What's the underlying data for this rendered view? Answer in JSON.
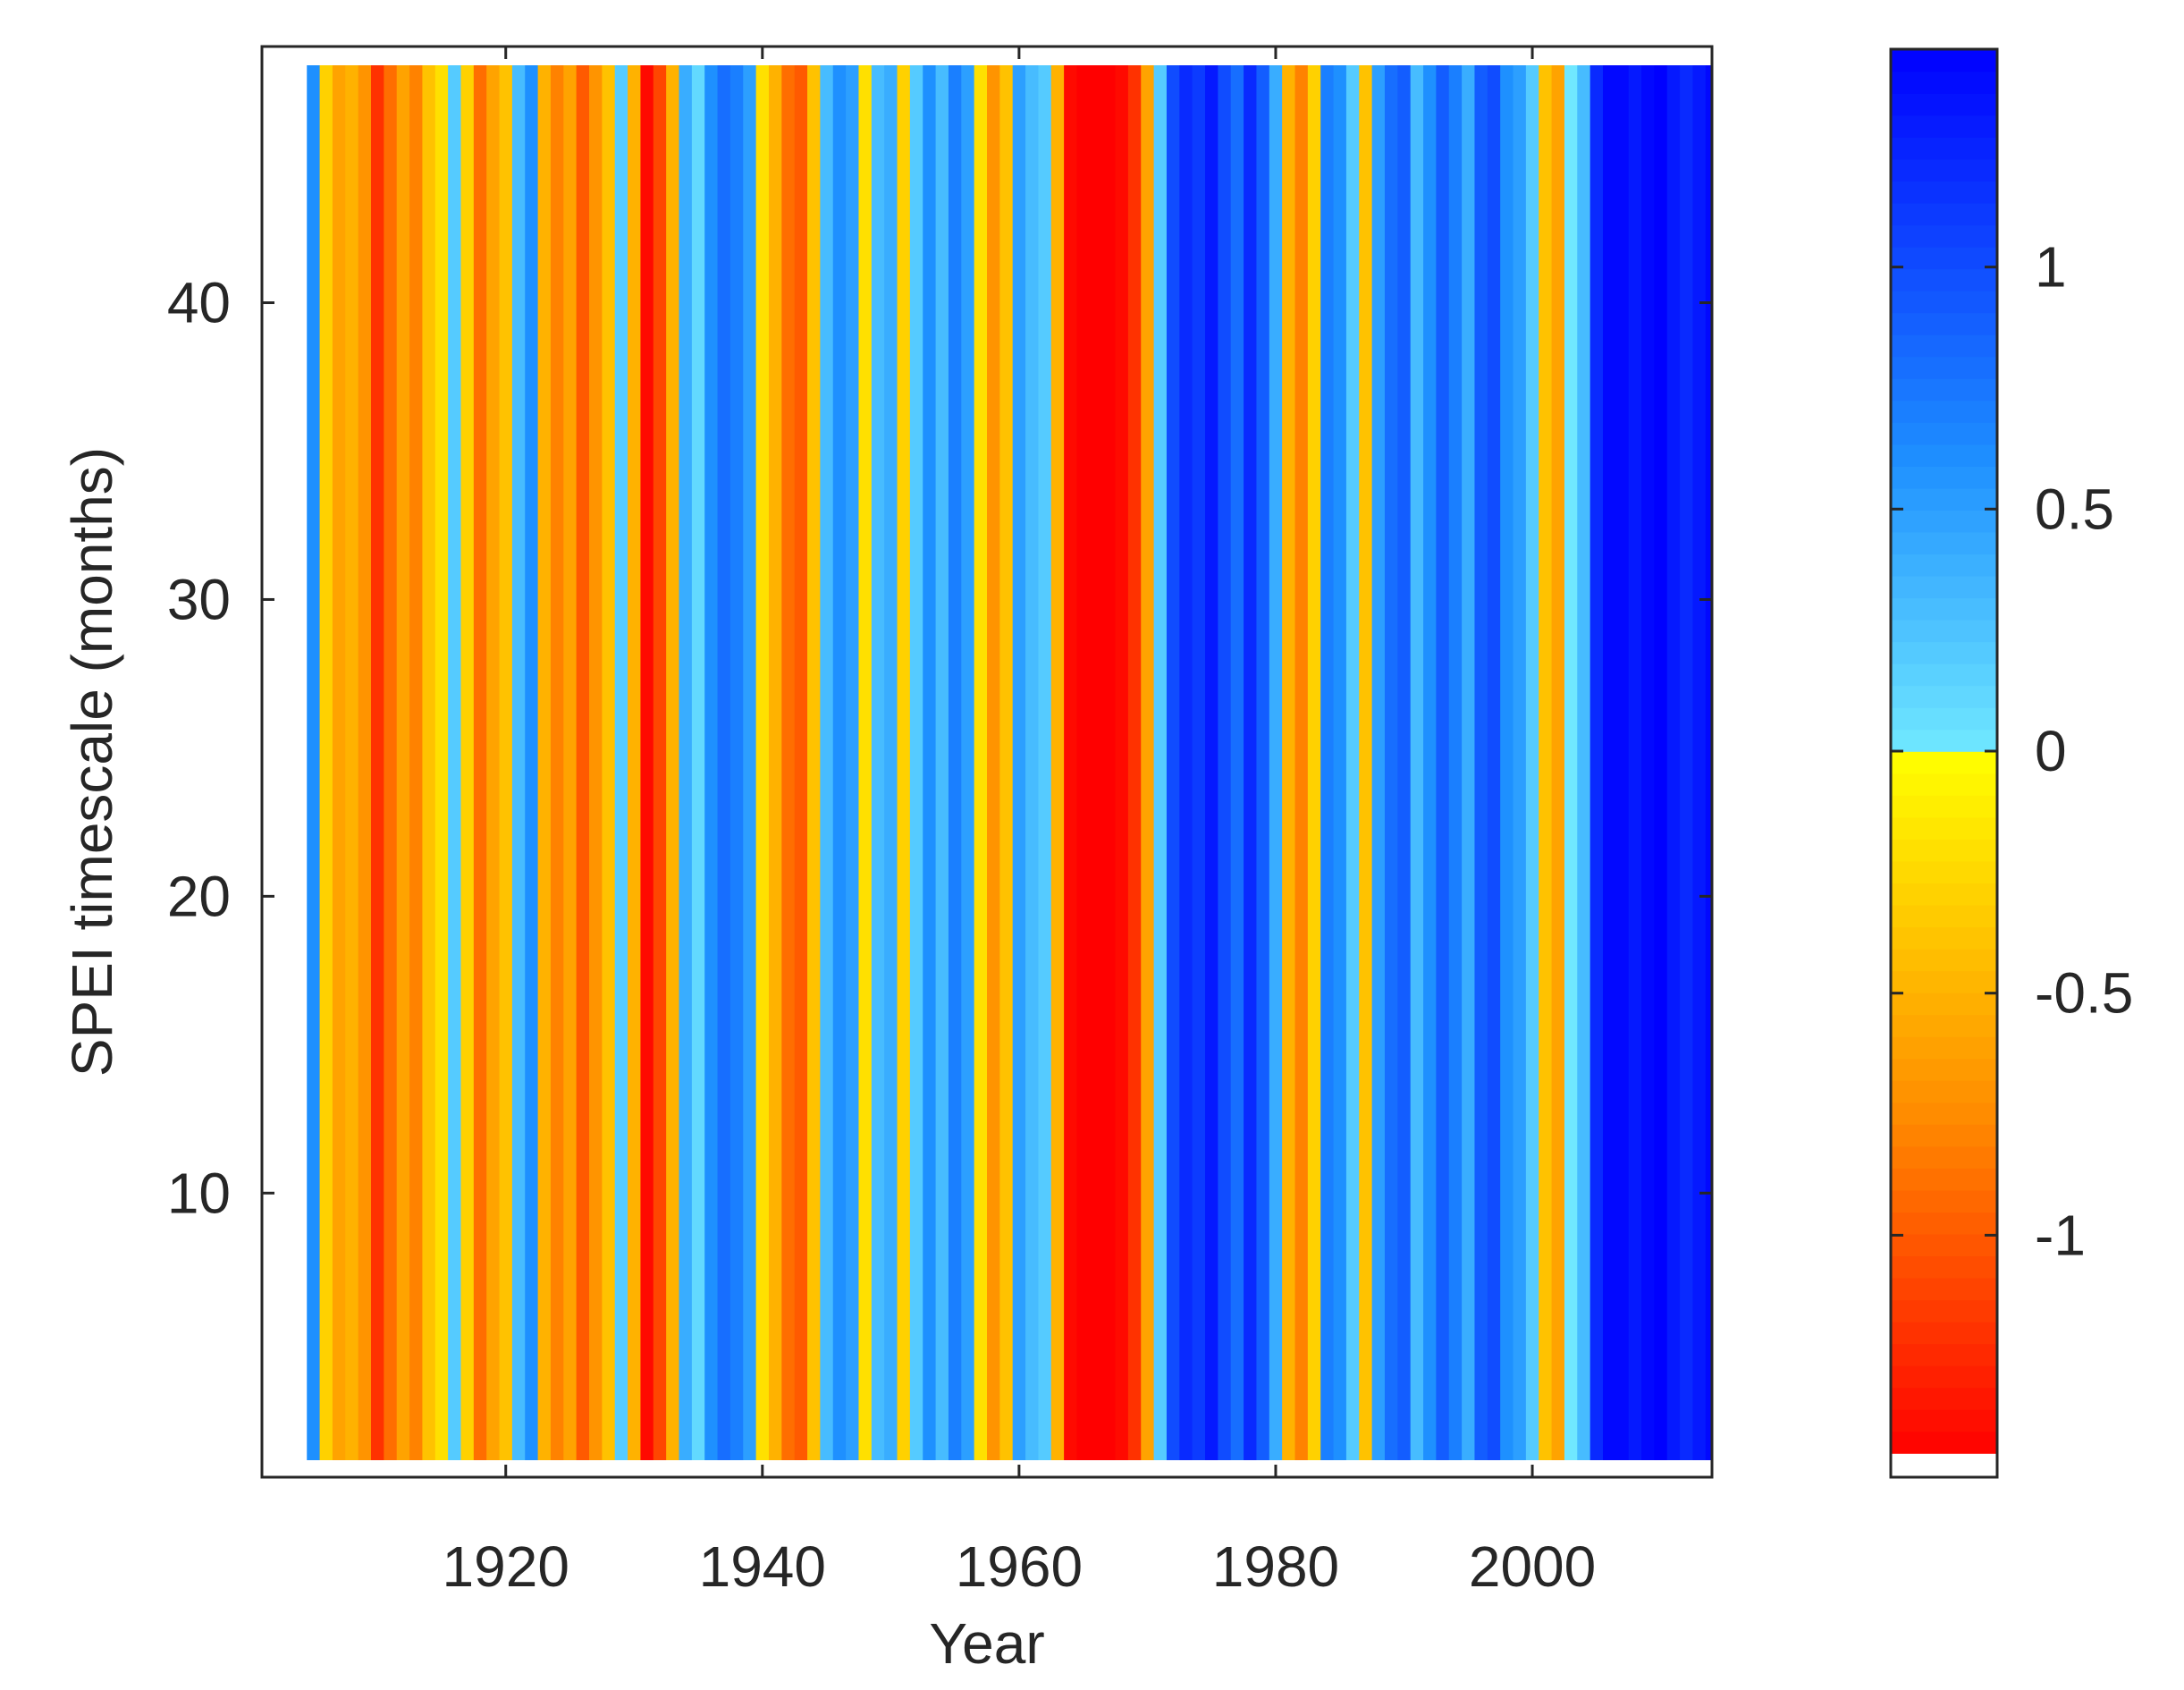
{
  "chart_data": {
    "type": "heatmap",
    "title": "",
    "xlabel": "Year",
    "ylabel": "SPEI timescale (months)",
    "xlim": [
      1901,
      2014
    ],
    "ylim": [
      1,
      48
    ],
    "x_ticks": [
      1920,
      1940,
      1960,
      1980,
      2000
    ],
    "x_tick_labels": [
      "1920",
      "1940",
      "1960",
      "1980",
      "2000"
    ],
    "y_ticks": [
      10,
      20,
      30,
      40
    ],
    "y_tick_labels": [
      "10",
      "20",
      "30",
      "40"
    ],
    "grid": false,
    "colorbar": {
      "position": "right",
      "clim": [
        -1.45,
        1.45
      ],
      "ticks": [
        -1,
        -0.5,
        0,
        0.5,
        1
      ],
      "tick_labels": [
        "-1",
        "-0.5",
        "0",
        "0.5",
        "1"
      ]
    },
    "colors": {
      "strong_dry": "#ff0000",
      "moderate_dry": "#ff8c00",
      "near_normal_dry": "#ffff00",
      "near_normal_wet": "#70e8ff",
      "moderate_wet": "#1e90ff",
      "strong_wet": "#0000ff"
    },
    "spei_48_month_by_year": {
      "years": [
        1901,
        1902,
        1903,
        1904,
        1905,
        1906,
        1907,
        1908,
        1909,
        1910,
        1911,
        1912,
        1913,
        1914,
        1915,
        1916,
        1917,
        1918,
        1919,
        1920,
        1921,
        1922,
        1923,
        1924,
        1925,
        1926,
        1927,
        1928,
        1929,
        1930,
        1931,
        1932,
        1933,
        1934,
        1935,
        1936,
        1937,
        1938,
        1939,
        1940,
        1941,
        1942,
        1943,
        1944,
        1945,
        1946,
        1947,
        1948,
        1949,
        1950,
        1951,
        1952,
        1953,
        1954,
        1955,
        1956,
        1957,
        1958,
        1959,
        1960,
        1961,
        1962,
        1963,
        1964,
        1965,
        1966,
        1967,
        1968,
        1969,
        1970,
        1971,
        1972,
        1973,
        1974,
        1975,
        1976,
        1977,
        1978,
        1979,
        1980,
        1981,
        1982,
        1983,
        1984,
        1985,
        1986,
        1987,
        1988,
        1989,
        1990,
        1991,
        1992,
        1993,
        1994,
        1995,
        1996,
        1997,
        1998,
        1999,
        2000,
        2001,
        2002,
        2003,
        2004,
        2005,
        2006,
        2007,
        2008,
        2009,
        2010,
        2011,
        2012,
        2013,
        2014
      ],
      "values": [
        null,
        null,
        null,
        null,
        0.6,
        -0.3,
        -0.6,
        -0.5,
        -0.7,
        -1.2,
        -0.9,
        -0.6,
        -0.8,
        -0.4,
        -0.2,
        0.2,
        -0.3,
        -0.9,
        -0.6,
        -0.4,
        0.3,
        0.6,
        -0.5,
        -0.8,
        -0.6,
        -1.0,
        -0.7,
        -0.4,
        0.2,
        -0.5,
        -1.4,
        -1.1,
        -0.5,
        0.4,
        0.1,
        0.6,
        0.8,
        0.7,
        0.5,
        -0.2,
        -0.5,
        -0.9,
        -1.0,
        -0.4,
        0.3,
        0.6,
        0.5,
        -0.2,
        0.3,
        0.4,
        -0.3,
        0.2,
        0.6,
        0.3,
        0.7,
        0.5,
        -0.2,
        -0.7,
        -0.4,
        0.5,
        0.3,
        0.2,
        -0.5,
        -1.4,
        -1.45,
        -1.45,
        -1.45,
        -1.4,
        -1.2,
        -0.6,
        0.2,
        1.0,
        1.2,
        1.1,
        1.3,
        1.0,
        0.8,
        1.2,
        0.9,
        0.4,
        -0.5,
        -0.8,
        -0.3,
        0.7,
        0.6,
        0.2,
        -0.4,
        0.5,
        0.8,
        0.9,
        0.3,
        0.6,
        0.9,
        0.7,
        0.4,
        0.9,
        1.0,
        0.6,
        0.5,
        0.2,
        -0.4,
        -0.6,
        0.0,
        0.3,
        1.2,
        1.4,
        1.4,
        1.3,
        1.4,
        1.45,
        1.3,
        1.2,
        1.3,
        1.4
      ]
    }
  },
  "axes": {
    "xlabel": "Year",
    "ylabel": "SPEI timescale (months)",
    "x_tick_labels": [
      "1920",
      "1940",
      "1960",
      "1980",
      "2000"
    ],
    "y_tick_labels": [
      "10",
      "20",
      "30",
      "40"
    ]
  },
  "colorbar": {
    "tick_labels": [
      "1",
      "0.5",
      "0",
      "-0.5",
      "-1"
    ]
  }
}
